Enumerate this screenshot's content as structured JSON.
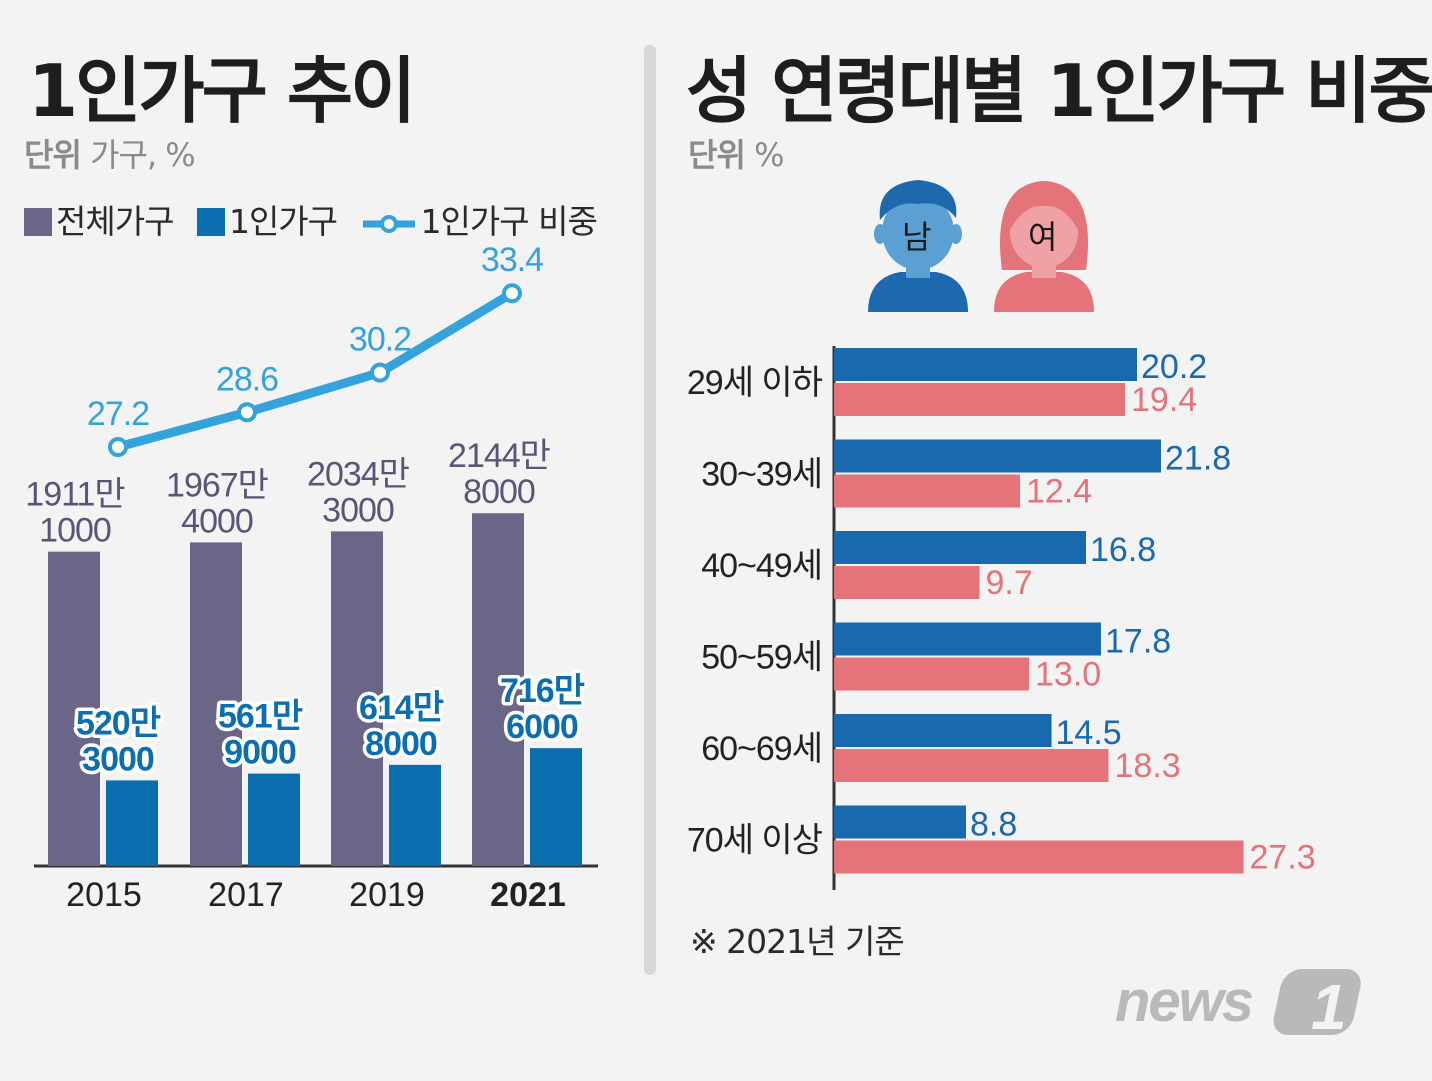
{
  "left": {
    "title": "1인가구 추이",
    "unit_bold": "단위",
    "unit_text": "가구, %",
    "legend": [
      "전체가구",
      "1인가구",
      "1인가구 비중"
    ]
  },
  "right": {
    "title": "성 연령대별 1인가구 비중",
    "unit_bold": "단위",
    "unit_text": "%",
    "male_icon_label": "남",
    "female_icon_label": "여",
    "note": "※ 2021년 기준"
  },
  "colors": {
    "total": "#6a6688",
    "single": "#0a6eb0",
    "ratio_line": "#34a3db",
    "male": "#1869ad",
    "female": "#e4737a",
    "label_total": "#5a5577",
    "label_single": "#0a6eb0",
    "label_ratio": "#34a3db"
  },
  "logo": {
    "text": "news",
    "digit": "1"
  },
  "chart_data": [
    {
      "type": "bar",
      "categories": [
        "2015",
        "2017",
        "2019",
        "2021"
      ],
      "series": [
        {
          "name": "전체가구",
          "values": [
            19111000,
            19674000,
            20343000,
            21448000
          ],
          "labels": [
            [
              "1911만",
              "1000"
            ],
            [
              "1967만",
              "4000"
            ],
            [
              "2034만",
              "3000"
            ],
            [
              "2144만",
              "8000"
            ]
          ]
        },
        {
          "name": "1인가구",
          "values": [
            5203000,
            5619000,
            6148000,
            7166000
          ],
          "labels": [
            [
              "520만",
              "3000"
            ],
            [
              "561만",
              "9000"
            ],
            [
              "614만",
              "8000"
            ],
            [
              "716만",
              "6000"
            ]
          ]
        }
      ],
      "line_series": {
        "name": "1인가구 비중",
        "values": [
          27.2,
          28.6,
          30.2,
          33.4
        ],
        "labels": [
          "27.2",
          "28.6",
          "30.2",
          "33.4"
        ]
      },
      "bold_category": "2021"
    },
    {
      "type": "bar",
      "orientation": "horizontal",
      "categories": [
        "29세 이하",
        "30~39세",
        "40~49세",
        "50~59세",
        "60~69세",
        "70세 이상"
      ],
      "series": [
        {
          "name": "남",
          "values": [
            20.2,
            21.8,
            16.8,
            17.8,
            14.5,
            8.8
          ],
          "labels": [
            "20.2",
            "21.8",
            "16.8",
            "17.8",
            "14.5",
            "8.8"
          ]
        },
        {
          "name": "여",
          "values": [
            19.4,
            12.4,
            9.7,
            13.0,
            18.3,
            27.3
          ],
          "labels": [
            "19.4",
            "12.4",
            "9.7",
            "13.0",
            "18.3",
            "27.3"
          ]
        }
      ]
    }
  ]
}
